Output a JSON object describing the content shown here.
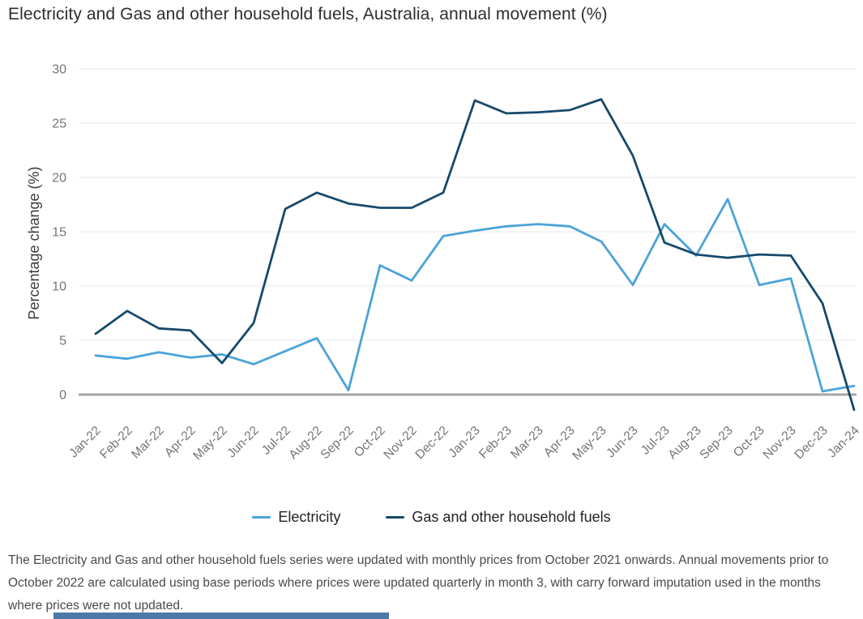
{
  "title": "Electricity and Gas and other household fuels, Australia, annual movement (%)",
  "chart_data": {
    "type": "line",
    "title": "Electricity and Gas and other household fuels, Australia, annual movement (%)",
    "xlabel": "",
    "ylabel": "Percentage change (%)",
    "categories": [
      "Jan-22",
      "Feb-22",
      "Mar-22",
      "Apr-22",
      "May-22",
      "Jun-22",
      "Jul-22",
      "Aug-22",
      "Sep-22",
      "Oct-22",
      "Nov-22",
      "Dec-22",
      "Jan-23",
      "Feb-23",
      "Mar-23",
      "Apr-23",
      "May-23",
      "Jun-23",
      "Jul-23",
      "Aug-23",
      "Sep-23",
      "Oct-23",
      "Nov-23",
      "Dec-23",
      "Jan-24"
    ],
    "series": [
      {
        "name": "Electricity",
        "color": "#4aa3d9",
        "values": [
          3.6,
          3.3,
          3.9,
          3.4,
          3.7,
          2.8,
          4.0,
          5.2,
          0.4,
          11.9,
          10.5,
          14.6,
          15.1,
          15.5,
          15.7,
          15.5,
          14.1,
          10.1,
          15.7,
          12.8,
          18.0,
          10.1,
          10.7,
          0.3,
          0.8
        ]
      },
      {
        "name": "Gas and other household fuels",
        "color": "#17496b",
        "values": [
          5.6,
          7.7,
          6.1,
          5.9,
          2.9,
          6.6,
          17.1,
          18.6,
          17.6,
          17.2,
          17.2,
          18.6,
          27.1,
          25.9,
          26.0,
          26.2,
          27.2,
          22.0,
          14.0,
          12.9,
          12.6,
          12.9,
          12.8,
          8.4,
          -1.4
        ]
      }
    ],
    "yticks": [
      0,
      5,
      10,
      15,
      20,
      25,
      30
    ],
    "ylim": [
      -2.5,
      30
    ],
    "grid": "horizontal",
    "legend_position": "bottom"
  },
  "footnote": "The Electricity and Gas and other household fuels series were updated with monthly prices from October 2021 onwards. Annual movements prior to October 2022 are calculated using base periods where prices were updated quarterly in month 3, with carry forward imputation used in the months where prices were not updated.",
  "colors": {
    "grid_line": "#e8e8e8",
    "zero_line": "#a6a6a6",
    "tick_text": "#757575",
    "axis_title_text": "#3c3c3c",
    "bottom_bar": "#4b79a8"
  }
}
